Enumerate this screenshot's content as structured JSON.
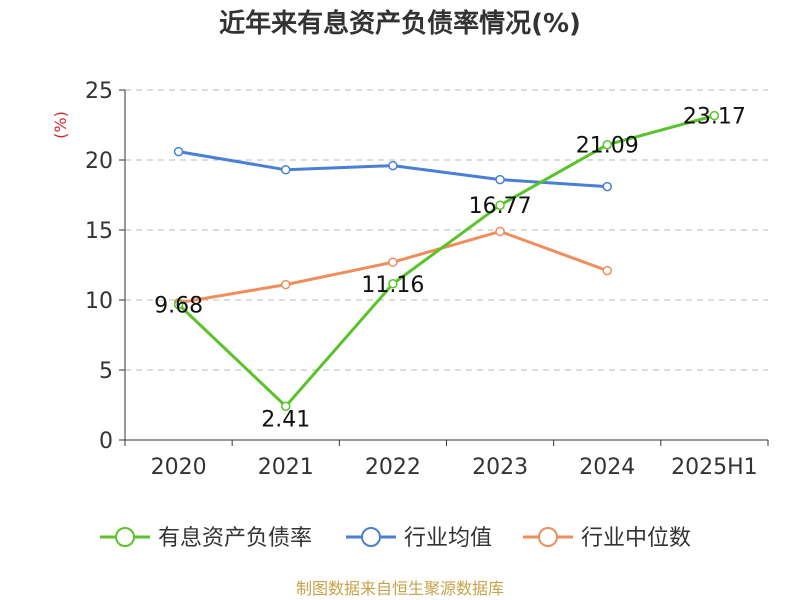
{
  "chart_data": {
    "type": "line",
    "title": "近年来有息资产负债率情况(%)",
    "ylabel": "(%)",
    "ylim": [
      0,
      25
    ],
    "yticks": [
      "0",
      "5",
      "10",
      "15",
      "20",
      "25"
    ],
    "categories": [
      "2020",
      "2021",
      "2022",
      "2023",
      "2024",
      "2025H1"
    ],
    "grid": true,
    "legend_position": "bottom",
    "series": [
      {
        "name": "有息资产负债率",
        "color": "#5ac32a",
        "values": [
          9.68,
          2.41,
          11.16,
          16.77,
          21.09,
          23.17
        ],
        "labels": [
          "9.68",
          "2.41",
          "11.16",
          "16.77",
          "21.09",
          "23.17"
        ]
      },
      {
        "name": "行业均值",
        "color": "#4a7fd6",
        "values": [
          20.6,
          19.3,
          19.6,
          18.6,
          18.1,
          null
        ]
      },
      {
        "name": "行业中位数",
        "color": "#f08d5c",
        "values": [
          9.8,
          11.1,
          12.7,
          14.9,
          12.1,
          null
        ]
      }
    ]
  },
  "footer": {
    "source": "制图数据来自恒生聚源数据库"
  }
}
